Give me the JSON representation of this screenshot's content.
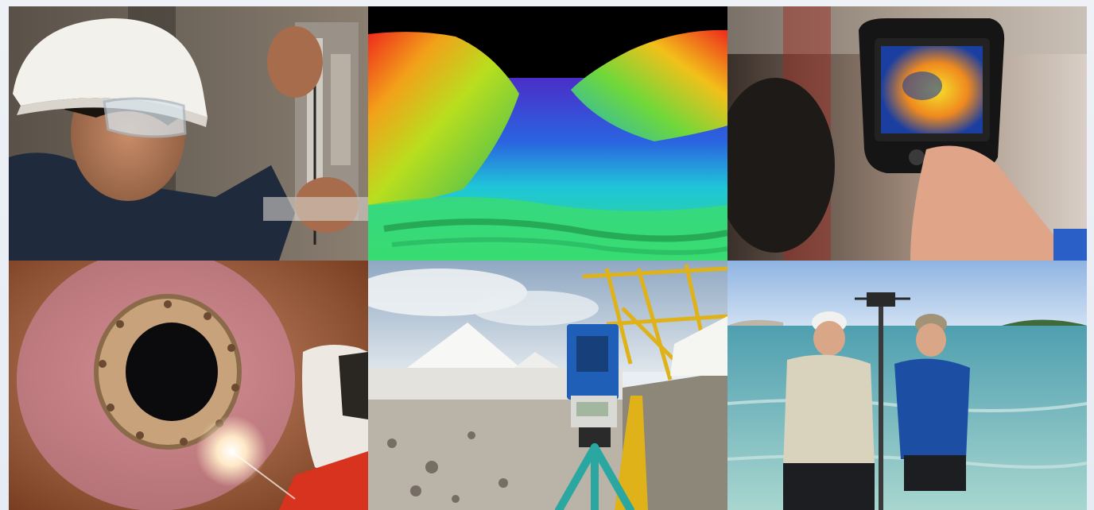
{
  "collage": {
    "tiles": [
      {
        "id": "engineer-hardhat",
        "subject-icon": "engineer-icon"
      },
      {
        "id": "bathymetry-3d",
        "subject-icon": "terrain-map-icon"
      },
      {
        "id": "thermal-camera",
        "subject-icon": "thermal-camera-icon"
      },
      {
        "id": "pipe-welding",
        "subject-icon": "welding-icon"
      },
      {
        "id": "total-station-survey",
        "subject-icon": "survey-instrument-icon"
      },
      {
        "id": "coastal-gnss-survey",
        "subject-icon": "gnss-pole-icon"
      }
    ]
  },
  "colors": {
    "page_bg": "#e9eef4",
    "thermal_blue": "#1b3fa0",
    "thermal_yellow": "#f5e12a",
    "survey_yellow": "#e0b21a",
    "tripod_teal": "#2aa7a0"
  }
}
